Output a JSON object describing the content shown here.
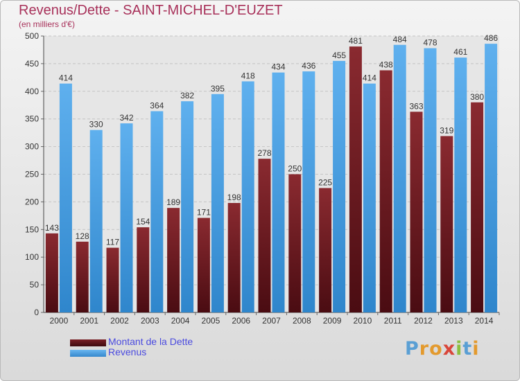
{
  "chart_data": {
    "type": "bar",
    "title": "Revenus/Dette - SAINT-MICHEL-D'EUZET",
    "subtitle": "(en milliers d'€)",
    "categories": [
      "2000",
      "2001",
      "2002",
      "2003",
      "2004",
      "2005",
      "2006",
      "2007",
      "2008",
      "2009",
      "2010",
      "2011",
      "2012",
      "2013",
      "2014"
    ],
    "series": [
      {
        "name": "Montant de la Dette",
        "values": [
          143,
          128,
          117,
          154,
          189,
          171,
          198,
          278,
          250,
          225,
          481,
          438,
          363,
          319,
          380
        ],
        "color": "#7a1f26"
      },
      {
        "name": "Revenus",
        "values": [
          414,
          330,
          342,
          364,
          382,
          395,
          418,
          434,
          436,
          455,
          414,
          484,
          478,
          461,
          486
        ],
        "color": "#4a9ee0"
      }
    ],
    "ylim": [
      0,
      500
    ],
    "yticks": [
      0,
      50,
      100,
      150,
      200,
      250,
      300,
      350,
      400,
      450,
      500
    ],
    "grid": true,
    "legend_position": "bottom-left"
  },
  "brand": {
    "letters": [
      "P",
      "r",
      "o",
      "x",
      "i",
      "t",
      "i"
    ],
    "colors": [
      "#5a9fd4",
      "#e39a2e",
      "#e39a2e",
      "#d9463a",
      "#8cbf3f",
      "#5a9fd4",
      "#e39a2e"
    ]
  }
}
